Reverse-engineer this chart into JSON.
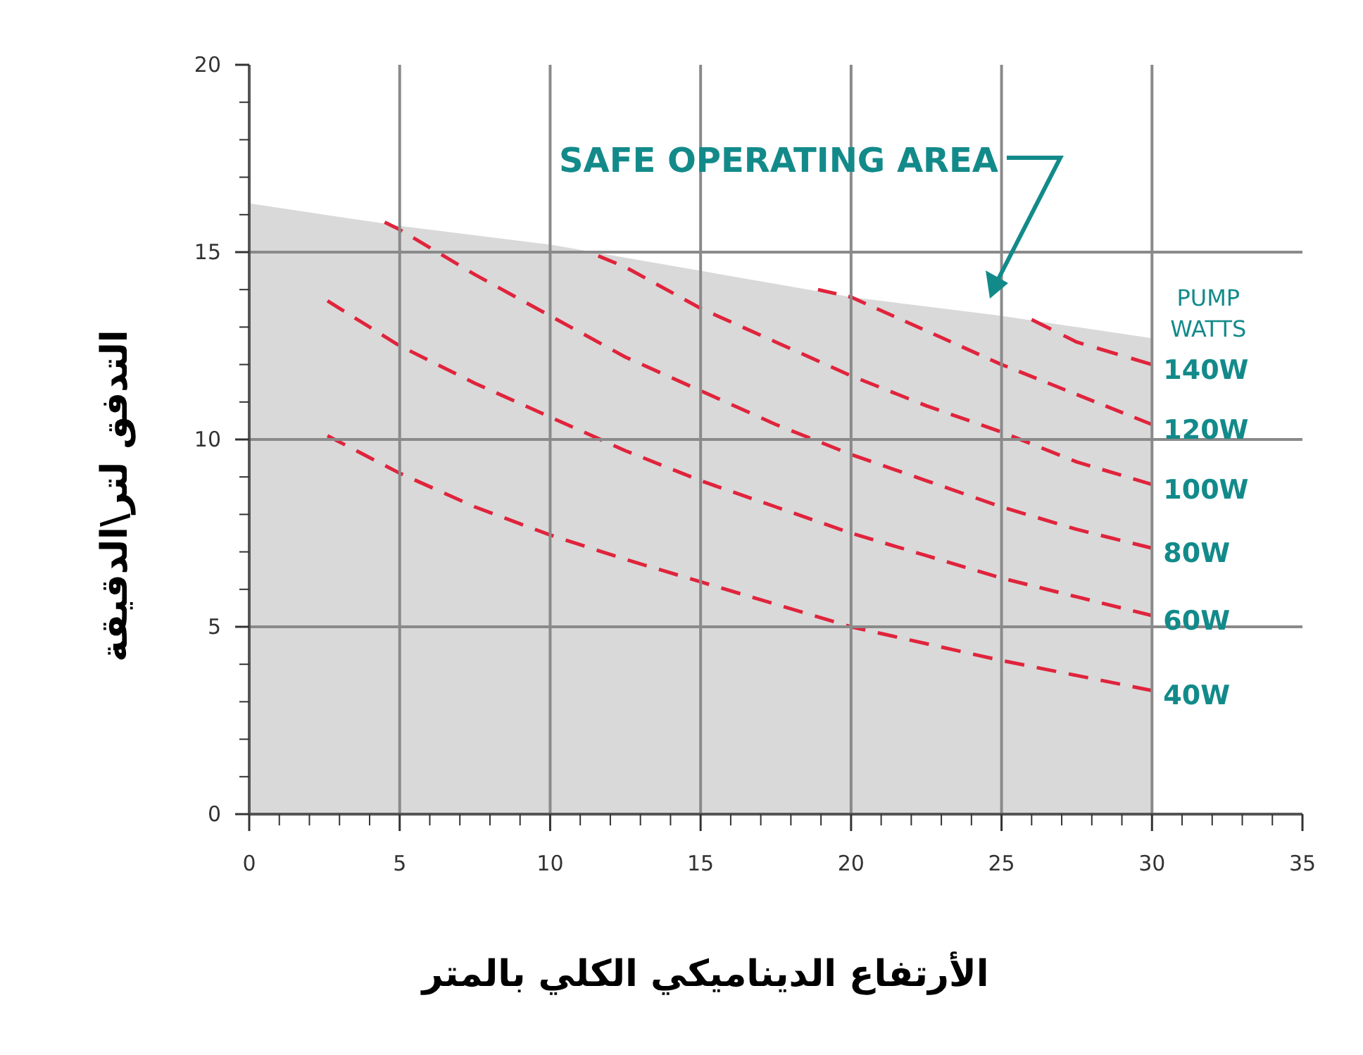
{
  "chart_data": {
    "type": "line",
    "xlabel": "الأرتفاع الديناميكي الكلي بالمتر",
    "ylabel": "التدفق لتر\\الدقيقة",
    "legend_title": "PUMP WATTS",
    "legend": "right",
    "line_style": "dashed",
    "grid": true,
    "xlim": [
      0,
      35
    ],
    "ylim": [
      0,
      20
    ],
    "xticks": [
      0,
      5,
      10,
      15,
      20,
      25,
      30,
      35
    ],
    "yticks": [
      0,
      5,
      10,
      15,
      20
    ],
    "annotations": [
      "SAFE OPERATING AREA"
    ],
    "series": [
      {
        "type": "area",
        "color": "#d9d9d9",
        "x": [
          0,
          5,
          10,
          15,
          20,
          25,
          30
        ],
        "values": [
          16.3,
          15.7,
          15.2,
          14.5,
          13.8,
          13.3,
          12.7
        ]
      },
      {
        "name": "140W",
        "color": "#e0243c",
        "x": [
          26,
          27.5,
          30
        ],
        "values": [
          13.2,
          12.6,
          12.0
        ]
      },
      {
        "name": "120W",
        "color": "#e0243c",
        "x": [
          18.9,
          20,
          22.5,
          25,
          27.5,
          30
        ],
        "values": [
          14.0,
          13.8,
          12.9,
          12.0,
          11.2,
          10.4
        ]
      },
      {
        "name": "100W",
        "color": "#e0243c",
        "x": [
          11.6,
          12.5,
          15,
          17.5,
          20,
          22.5,
          25,
          27.5,
          30
        ],
        "values": [
          14.9,
          14.6,
          13.5,
          12.6,
          11.7,
          10.9,
          10.2,
          9.4,
          8.8
        ]
      },
      {
        "name": "80W",
        "color": "#e0243c",
        "x": [
          4.5,
          5,
          7.5,
          10,
          12.5,
          15,
          17.5,
          20,
          22.5,
          25,
          27.5,
          30
        ],
        "values": [
          15.8,
          15.6,
          14.4,
          13.3,
          12.2,
          11.3,
          10.4,
          9.6,
          8.9,
          8.2,
          7.6,
          7.1
        ]
      },
      {
        "name": "60W",
        "color": "#e0243c",
        "x": [
          2.6,
          5,
          7.5,
          10,
          12.5,
          15,
          17.5,
          20,
          22.5,
          25,
          27.5,
          30
        ],
        "values": [
          13.7,
          12.5,
          11.5,
          10.6,
          9.7,
          8.9,
          8.2,
          7.5,
          6.9,
          6.3,
          5.8,
          5.3
        ]
      },
      {
        "name": "40W",
        "color": "#e0243c",
        "x": [
          2.6,
          5,
          7.5,
          10,
          12.5,
          15,
          17.5,
          20,
          22.5,
          25,
          27.5,
          30
        ],
        "values": [
          10.1,
          9.1,
          8.2,
          7.45,
          6.8,
          6.2,
          5.6,
          5.0,
          4.55,
          4.1,
          3.7,
          3.3
        ]
      }
    ]
  }
}
